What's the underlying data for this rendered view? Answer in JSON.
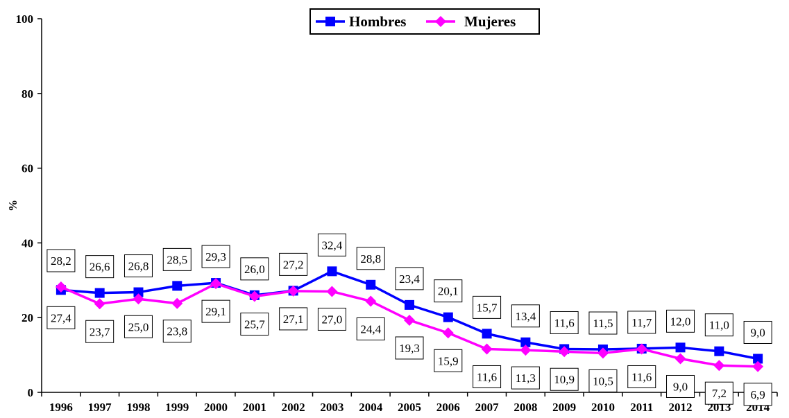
{
  "chart_data": {
    "type": "line",
    "categories": [
      "1996",
      "1997",
      "1998",
      "1999",
      "2000",
      "2001",
      "2002",
      "2003",
      "2004",
      "2005",
      "2006",
      "2007",
      "2008",
      "2009",
      "2010",
      "2011",
      "2012",
      "2013",
      "2014"
    ],
    "series": [
      {
        "name": "Hombres",
        "color": "#0000ff",
        "marker": "square",
        "values": [
          27.4,
          26.6,
          26.8,
          28.5,
          29.3,
          26.0,
          27.2,
          32.4,
          28.8,
          23.4,
          20.1,
          15.7,
          13.4,
          11.6,
          11.5,
          11.7,
          12.0,
          11.0,
          9.0
        ],
        "labels": [
          "27,4",
          "26,6",
          "26,8",
          "28,5",
          "29,3",
          "26,0",
          "27,2",
          "32,4",
          "28,8",
          "23,4",
          "20,1",
          "15,7",
          "13,4",
          "11,6",
          "11,5",
          "11,7",
          "12,0",
          "11,0",
          "9,0"
        ]
      },
      {
        "name": "Mujeres",
        "color": "#ff00ff",
        "marker": "diamond",
        "values": [
          28.2,
          23.7,
          25.0,
          23.8,
          29.1,
          25.7,
          27.1,
          27.0,
          24.4,
          19.3,
          15.9,
          11.6,
          11.3,
          10.9,
          10.5,
          11.6,
          9.0,
          7.2,
          6.9
        ],
        "labels": [
          "28,2",
          "23,7",
          "25,0",
          "23,8",
          "29,1",
          "25,7",
          "27,1",
          "27,0",
          "24,4",
          "19,3",
          "15,9",
          "11,6",
          "11,3",
          "10,9",
          "10,5",
          "11,6",
          "9,0",
          "7,2",
          "6,9"
        ]
      }
    ],
    "ylabel": "%",
    "ylim": [
      0,
      100
    ],
    "yticks": [
      "0",
      "20",
      "40",
      "60",
      "80",
      "100"
    ],
    "ytick_values": [
      0,
      20,
      40,
      60,
      80,
      100
    ],
    "legend_position": "top-center",
    "grid": false
  }
}
